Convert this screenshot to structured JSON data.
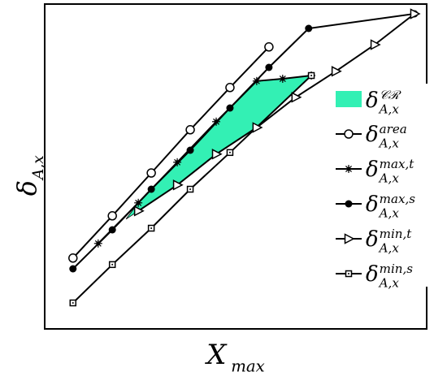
{
  "chart_data": {
    "type": "line",
    "x_label": {
      "main": "X",
      "subscript": "max"
    },
    "y_label": {
      "main": "δ",
      "subscript": "A,x"
    },
    "xlim": [
      0,
      100
    ],
    "ylim": [
      0,
      100
    ],
    "region": {
      "name": "δ",
      "superscript": "𝒞ℛ",
      "subscript": "A,x",
      "color": "#33f0b4",
      "x": [
        21.3,
        24.5,
        34.7,
        44.9,
        55.5,
        62.3,
        69.8,
        55.5,
        44.9,
        34.7,
        24.5,
        21.3
      ],
      "y": [
        33.8,
        38.8,
        51.3,
        63.8,
        76.3,
        77,
        78,
        62,
        53.8,
        44.3,
        36.3,
        33.8
      ]
    },
    "series": [
      {
        "name": "δ",
        "superscript": "area",
        "subscript": "A,x",
        "color": "#000000",
        "marker": "open-circle",
        "x": [
          7.4,
          17.7,
          27.9,
          38.1,
          48.5,
          58.7
        ],
        "values": [
          21.8,
          34.8,
          48,
          61.3,
          74.3,
          86.8
        ]
      },
      {
        "name": "δ",
        "superscript": "max,t",
        "subscript": "A,x",
        "color": "#000000",
        "marker": "asterisk",
        "x": [
          14,
          24.5,
          34.7,
          44.9,
          55.5,
          62.3,
          69.8
        ],
        "values": [
          26.3,
          38.8,
          51.3,
          63.8,
          76.3,
          77,
          78
        ]
      },
      {
        "name": "δ",
        "superscript": "max,s",
        "subscript": "A,x",
        "color": "#000000",
        "marker": "dot",
        "x": [
          7.4,
          17.7,
          27.9,
          38.1,
          48.5,
          58.7,
          69.1,
          96.8
        ],
        "values": [
          18.5,
          30.5,
          43,
          55,
          68,
          80.5,
          92.5,
          97
        ]
      },
      {
        "name": "δ",
        "superscript": "min,t",
        "subscript": "A,x",
        "color": "#000000",
        "marker": "triangle",
        "x": [
          24.5,
          34.7,
          44.9,
          55.5,
          65.7,
          76.2,
          86.4,
          96.8
        ],
        "values": [
          36.3,
          44.3,
          53.8,
          62,
          71.3,
          79.3,
          87.5,
          97
        ]
      },
      {
        "name": "δ",
        "superscript": "min,s",
        "subscript": "A,x",
        "color": "#000000",
        "marker": "square",
        "x": [
          7.4,
          17.7,
          27.9,
          38.1,
          48.5,
          69.8
        ],
        "values": [
          8,
          19.8,
          31,
          43,
          54.3,
          78
        ]
      }
    ]
  }
}
